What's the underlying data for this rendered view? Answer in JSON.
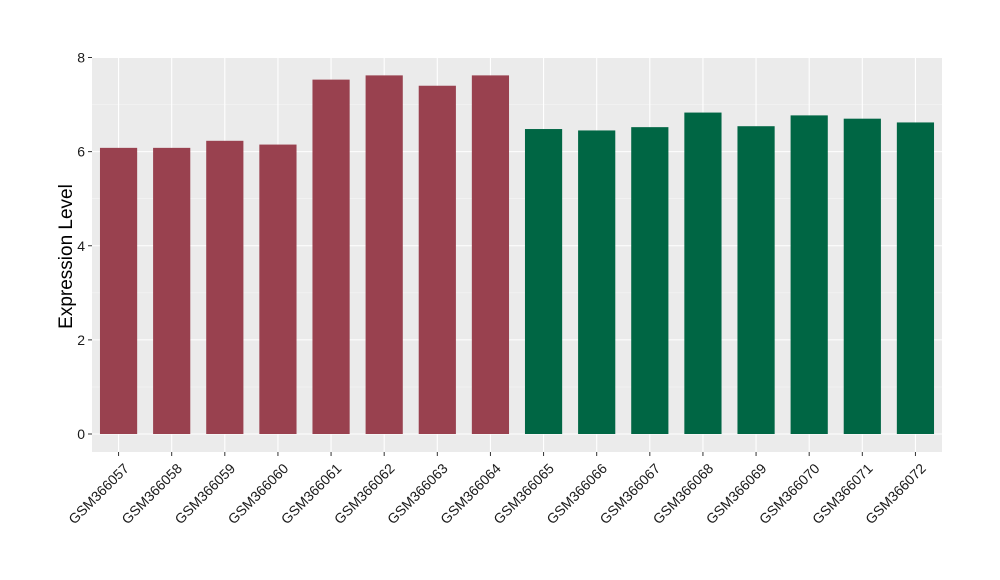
{
  "chart_data": {
    "type": "bar",
    "title": "",
    "xlabel": "",
    "ylabel": "Expression Level",
    "ylim": [
      0,
      8
    ],
    "yticks": [
      0,
      2,
      4,
      6,
      8
    ],
    "grid": true,
    "legend": "none",
    "categories": [
      "GSM366057",
      "GSM366058",
      "GSM366059",
      "GSM366060",
      "GSM366061",
      "GSM366062",
      "GSM366063",
      "GSM366064",
      "GSM366065",
      "GSM366066",
      "GSM366067",
      "GSM366068",
      "GSM366069",
      "GSM366070",
      "GSM366071",
      "GSM366072"
    ],
    "values": [
      6.08,
      6.08,
      6.23,
      6.15,
      7.53,
      7.62,
      7.4,
      7.62,
      6.48,
      6.45,
      6.52,
      6.83,
      6.54,
      6.77,
      6.7,
      6.62
    ],
    "groups": [
      0,
      0,
      0,
      0,
      0,
      0,
      0,
      0,
      1,
      1,
      1,
      1,
      1,
      1,
      1,
      1
    ],
    "colors": {
      "group_0": "#99414f",
      "group_1": "#006644",
      "panel_background": "#ebebeb",
      "grid_major": "#ffffff",
      "grid_minor": "#f5f5f5",
      "tick_color": "#333333"
    }
  }
}
